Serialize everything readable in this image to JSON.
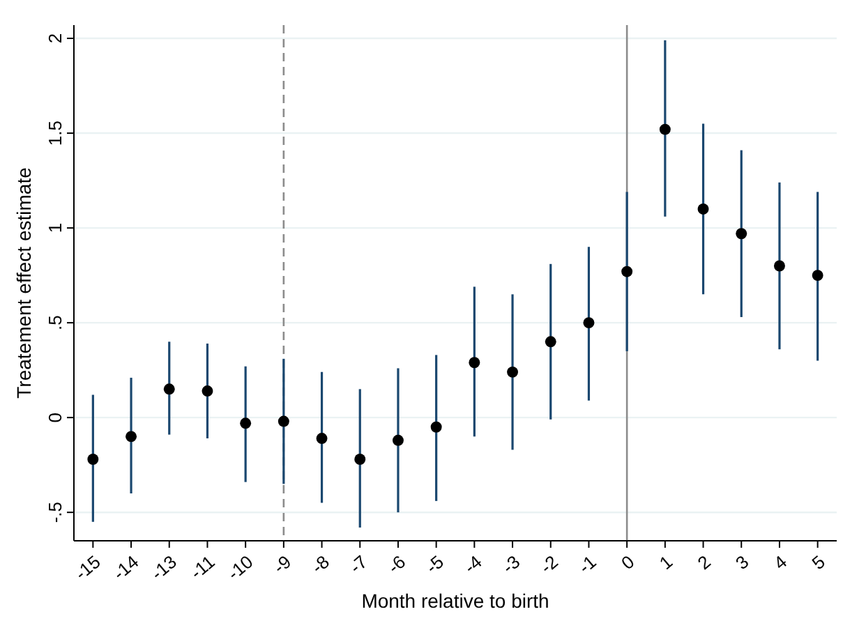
{
  "chart_data": {
    "type": "scatter",
    "xlabel": "Month relative to birth",
    "ylabel": "Treatement effect estimate",
    "categories": [
      "-15",
      "-14",
      "-13",
      "-11",
      "-10",
      "-9",
      "-8",
      "-7",
      "-6",
      "-5",
      "-4",
      "-3",
      "-2",
      "-1",
      "0",
      "1",
      "2",
      "3",
      "4",
      "5"
    ],
    "series": [
      {
        "color": "#000000",
        "values": [
          -0.22,
          -0.1,
          0.15,
          0.14,
          -0.03,
          -0.02,
          -0.11,
          -0.22,
          -0.12,
          -0.05,
          0.29,
          0.24,
          0.4,
          0.5,
          0.77,
          1.52,
          1.1,
          0.97,
          0.8,
          0.75
        ],
        "errors": [
          [
            -0.55,
            0.12
          ],
          [
            -0.4,
            0.21
          ],
          [
            -0.09,
            0.4
          ],
          [
            -0.11,
            0.39
          ],
          [
            -0.34,
            0.27
          ],
          [
            -0.35,
            0.31
          ],
          [
            -0.45,
            0.24
          ],
          [
            -0.58,
            0.15
          ],
          [
            -0.5,
            0.26
          ],
          [
            -0.44,
            0.33
          ],
          [
            -0.1,
            0.69
          ],
          [
            -0.17,
            0.65
          ],
          [
            -0.01,
            0.81
          ],
          [
            0.09,
            0.9
          ],
          [
            0.35,
            1.19
          ],
          [
            1.06,
            1.99
          ],
          [
            0.65,
            1.55
          ],
          [
            0.53,
            1.41
          ],
          [
            0.36,
            1.24
          ],
          [
            0.3,
            1.19
          ]
        ]
      }
    ],
    "ylim": [
      -0.65,
      2.07
    ],
    "yticks": [
      {
        "value": -0.5,
        "label": "-.5"
      },
      0,
      {
        "value": 0.5,
        "label": ".5"
      },
      1,
      1.5,
      2
    ],
    "ref_lines": [
      {
        "axis": "x",
        "value": "-9",
        "color": "#8c8c8c",
        "line_style": "dashed"
      },
      {
        "axis": "x",
        "value": "0",
        "color": "#8c8c8c",
        "line_style": "solid"
      }
    ],
    "grid": "y",
    "marker": "circle"
  }
}
